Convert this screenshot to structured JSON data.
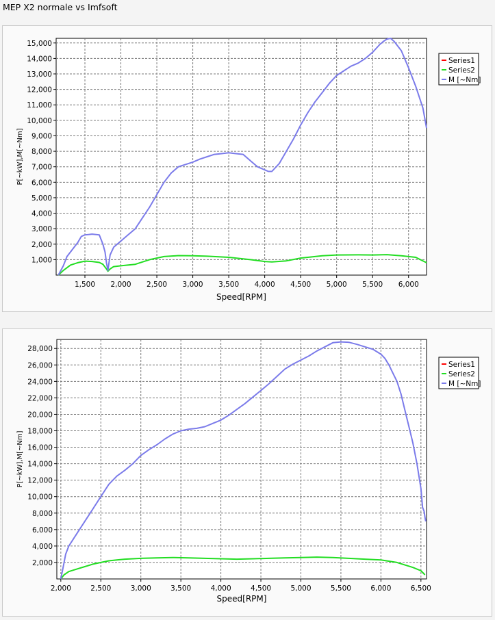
{
  "page": {
    "title": "MEP X2 normale vs Imfsoft"
  },
  "chart_data": [
    {
      "type": "line",
      "title": "",
      "xlabel": "Speed[RPM]",
      "ylabel": "P[~kW],M[~Nm]",
      "xlim": [
        1100,
        6250
      ],
      "ylim": [
        0,
        15300
      ],
      "xticks": [
        1500,
        2000,
        2500,
        3000,
        3500,
        4000,
        4500,
        5000,
        5500,
        6000
      ],
      "xtick_labels": [
        "1,500",
        "2,000",
        "2,500",
        "3,000",
        "3,500",
        "4,000",
        "4,500",
        "5,000",
        "5,500",
        "6,000"
      ],
      "yticks": [
        1000,
        2000,
        3000,
        4000,
        5000,
        6000,
        7000,
        8000,
        9000,
        10000,
        11000,
        12000,
        13000,
        14000,
        15000
      ],
      "ytick_labels": [
        "1,000",
        "2,000",
        "3,000",
        "4,000",
        "5,000",
        "6,000",
        "7,000",
        "8,000",
        "9,000",
        "10,000",
        "11,000",
        "12,000",
        "13,000",
        "14,000",
        "15,000"
      ],
      "grid": true,
      "legend": {
        "position": "top-right",
        "entries": [
          "Series1",
          "Series2",
          "M [~Nm]"
        ]
      },
      "series": [
        {
          "name": "Series1",
          "color": "#ff0000",
          "x": [],
          "y": []
        },
        {
          "name": "Series2",
          "color": "#22dd22",
          "x": [
            1130,
            1200,
            1300,
            1400,
            1500,
            1600,
            1700,
            1750,
            1800,
            1820,
            1850,
            1900,
            2000,
            2200,
            2400,
            2600,
            2800,
            3000,
            3200,
            3500,
            3800,
            4000,
            4100,
            4300,
            4500,
            4800,
            5000,
            5300,
            5500,
            5700,
            5900,
            6100,
            6250
          ],
          "y": [
            0,
            300,
            650,
            800,
            900,
            880,
            820,
            700,
            400,
            250,
            400,
            550,
            600,
            700,
            1000,
            1200,
            1260,
            1250,
            1220,
            1150,
            1000,
            880,
            850,
            920,
            1100,
            1250,
            1300,
            1310,
            1300,
            1320,
            1250,
            1150,
            800
          ]
        },
        {
          "name": "M [~Nm]",
          "color": "#7b7bea",
          "x": [
            1130,
            1200,
            1250,
            1300,
            1400,
            1450,
            1500,
            1550,
            1600,
            1700,
            1750,
            1780,
            1800,
            1820,
            1850,
            1900,
            2000,
            2100,
            2200,
            2300,
            2400,
            2500,
            2600,
            2700,
            2800,
            2900,
            3000,
            3100,
            3200,
            3300,
            3400,
            3500,
            3600,
            3700,
            3800,
            3900,
            4000,
            4050,
            4100,
            4200,
            4300,
            4400,
            4500,
            4600,
            4700,
            4800,
            4900,
            5000,
            5100,
            5200,
            5300,
            5400,
            5500,
            5600,
            5650,
            5700,
            5750,
            5800,
            5900,
            6000,
            6100,
            6200,
            6250
          ],
          "y": [
            0,
            600,
            1200,
            1500,
            2100,
            2500,
            2600,
            2620,
            2650,
            2600,
            2000,
            1500,
            800,
            300,
            1300,
            1800,
            2200,
            2600,
            3000,
            3700,
            4400,
            5200,
            6000,
            6600,
            7000,
            7150,
            7300,
            7500,
            7650,
            7800,
            7850,
            7900,
            7850,
            7800,
            7400,
            7000,
            6800,
            6700,
            6700,
            7200,
            8000,
            8800,
            9700,
            10500,
            11200,
            11800,
            12400,
            12900,
            13200,
            13500,
            13700,
            14000,
            14400,
            14900,
            15100,
            15250,
            15300,
            15100,
            14500,
            13400,
            12200,
            10800,
            9500
          ]
        }
      ]
    },
    {
      "type": "line",
      "title": "",
      "xlabel": "Speed[RPM]",
      "ylabel": "P[~kW],M[~Nm]",
      "xlim": [
        1950,
        6570
      ],
      "ylim": [
        0,
        29100
      ],
      "xticks": [
        2000,
        2500,
        3000,
        3500,
        4000,
        4500,
        5000,
        5500,
        6000,
        6500
      ],
      "xtick_labels": [
        "2,000",
        "2,500",
        "3,000",
        "3,500",
        "4,000",
        "4,500",
        "5,000",
        "5,500",
        "6,000",
        "6,500"
      ],
      "yticks": [
        2000,
        4000,
        6000,
        8000,
        10000,
        12000,
        14000,
        16000,
        18000,
        20000,
        22000,
        24000,
        26000,
        28000
      ],
      "ytick_labels": [
        "2,000",
        "4,000",
        "6,000",
        "8,000",
        "10,000",
        "12,000",
        "14,000",
        "16,000",
        "18,000",
        "20,000",
        "22,000",
        "24,000",
        "26,000",
        "28,000"
      ],
      "grid": true,
      "legend": {
        "position": "top-right",
        "entries": [
          "Series1",
          "Series2",
          "M [~Nm]"
        ]
      },
      "series": [
        {
          "name": "Series1",
          "color": "#ff0000",
          "x": [],
          "y": []
        },
        {
          "name": "Series2",
          "color": "#22dd22",
          "x": [
            2000,
            2040,
            2100,
            2200,
            2300,
            2400,
            2500,
            2600,
            2700,
            2800,
            3000,
            3200,
            3400,
            3600,
            3800,
            4000,
            4200,
            4400,
            4600,
            4800,
            5000,
            5200,
            5400,
            5600,
            5800,
            6000,
            6200,
            6300,
            6400,
            6500,
            6550
          ],
          "y": [
            0,
            500,
            900,
            1200,
            1500,
            1800,
            2000,
            2200,
            2300,
            2400,
            2500,
            2550,
            2600,
            2550,
            2500,
            2450,
            2400,
            2450,
            2500,
            2550,
            2600,
            2650,
            2600,
            2500,
            2400,
            2300,
            2000,
            1700,
            1400,
            1000,
            500
          ]
        },
        {
          "name": "M [~Nm]",
          "color": "#7b7bea",
          "x": [
            2000,
            2030,
            2060,
            2100,
            2200,
            2300,
            2400,
            2500,
            2600,
            2700,
            2800,
            2900,
            3000,
            3100,
            3200,
            3300,
            3400,
            3500,
            3600,
            3700,
            3800,
            3900,
            4000,
            4100,
            4200,
            4300,
            4400,
            4500,
            4600,
            4700,
            4800,
            4900,
            5000,
            5100,
            5200,
            5300,
            5400,
            5500,
            5600,
            5700,
            5800,
            5900,
            6000,
            6050,
            6100,
            6150,
            6200,
            6250,
            6300,
            6350,
            6400,
            6450,
            6500,
            6520,
            6540,
            6550,
            6560
          ],
          "y": [
            0,
            1500,
            3000,
            4000,
            5500,
            7000,
            8500,
            10000,
            11500,
            12500,
            13200,
            14000,
            15000,
            15700,
            16300,
            17000,
            17600,
            18000,
            18200,
            18300,
            18500,
            18900,
            19300,
            19900,
            20600,
            21300,
            22100,
            22900,
            23700,
            24600,
            25500,
            26100,
            26600,
            27100,
            27700,
            28200,
            28700,
            28800,
            28750,
            28500,
            28200,
            27900,
            27300,
            26800,
            26000,
            25000,
            24000,
            22500,
            20500,
            18500,
            16500,
            14000,
            11000,
            8700,
            8200,
            7500,
            7000
          ]
        }
      ]
    }
  ]
}
